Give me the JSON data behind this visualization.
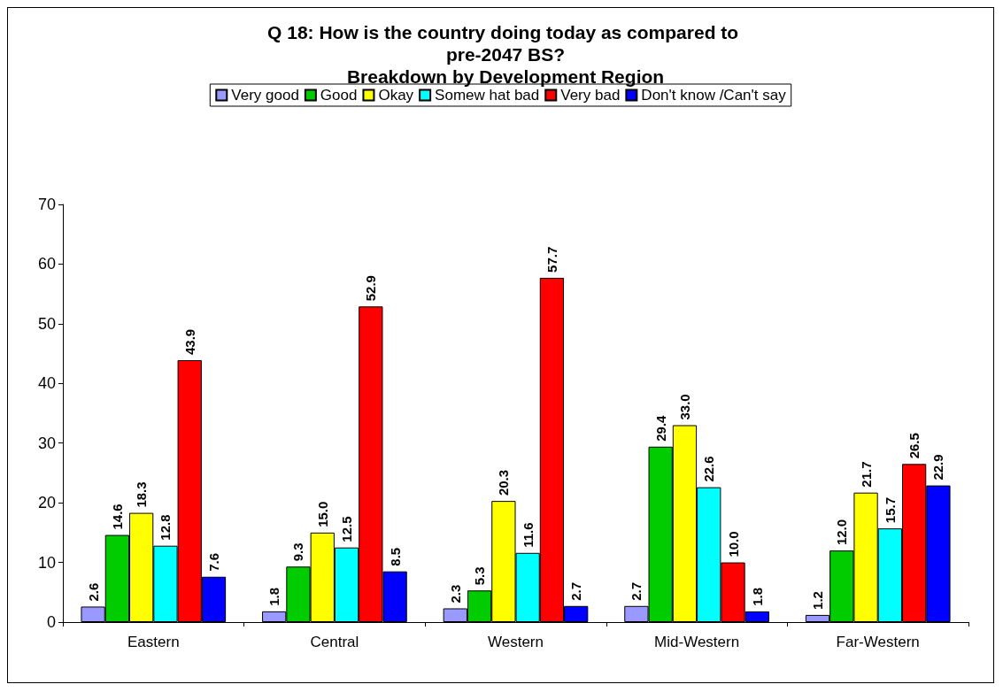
{
  "chart_data": {
    "type": "bar",
    "title": "Q 18: How is the country doing today as compared to pre-2047 BS?",
    "subtitle": "Breakdown by Development Region",
    "categories": [
      "Eastern",
      "Central",
      "Western",
      "Mid-Western",
      "Far-Western"
    ],
    "series": [
      {
        "name": "Very good",
        "color": "#9999ff",
        "values": [
          2.6,
          1.8,
          2.3,
          2.7,
          1.2
        ],
        "value_labels": [
          "2.6",
          "1.8",
          "2.3",
          "2.7",
          "1.2"
        ]
      },
      {
        "name": "Good",
        "color": "#00cc00",
        "values": [
          14.6,
          9.3,
          5.3,
          29.4,
          12
        ],
        "value_labels": [
          "14.6",
          "9.3",
          "5.3",
          "29.4",
          "12.0"
        ]
      },
      {
        "name": "Okay",
        "color": "#ffff00",
        "values": [
          18.3,
          15,
          20.3,
          33,
          21.7
        ],
        "value_labels": [
          "18.3",
          "15.0",
          "20.3",
          "33.0",
          "21.7"
        ]
      },
      {
        "name": "Somew hat bad",
        "color": "#00ffff",
        "values": [
          12.8,
          12.5,
          11.6,
          22.6,
          15.7
        ],
        "value_labels": [
          "12.8",
          "12.5",
          "11.6",
          "22.6",
          "15.7"
        ]
      },
      {
        "name": "Very bad",
        "color": "#ff0000",
        "values": [
          43.9,
          52.9,
          57.7,
          10,
          26.5
        ],
        "value_labels": [
          "43.9",
          "52.9",
          "57.7",
          "10.0",
          "26.5"
        ]
      },
      {
        "name": "Don't know /Can't say",
        "color": "#0000ff",
        "values": [
          7.6,
          8.5,
          2.7,
          1.8,
          22.9
        ],
        "value_labels": [
          "7.6",
          "8.5",
          "2.7",
          "1.8",
          "22.9"
        ]
      }
    ],
    "ylim": [
      0,
      70
    ],
    "yticks": [
      0,
      10,
      20,
      30,
      40,
      50,
      60,
      70
    ],
    "grid": false,
    "legend": "top"
  }
}
